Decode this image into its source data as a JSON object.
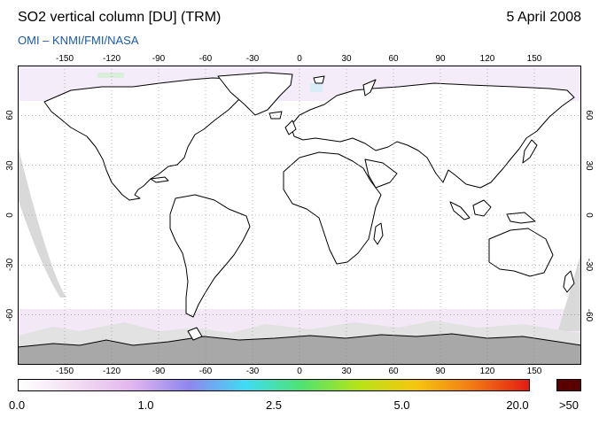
{
  "header": {
    "title": "SO2 vertical column [DU] (TRM)",
    "date": "5 April 2008",
    "credit": "OMI  –  KNMI/FMI/NASA"
  },
  "map": {
    "lon_ticks": [
      "-150",
      "-120",
      "-90",
      "-60",
      "-30",
      "0",
      "30",
      "60",
      "90",
      "120",
      "150"
    ],
    "lon_values": [
      -150,
      -120,
      -90,
      -60,
      -30,
      0,
      30,
      60,
      90,
      120,
      150
    ],
    "lat_ticks": [
      "60",
      "30",
      "0",
      "-30",
      "-60"
    ],
    "lat_values": [
      60,
      30,
      0,
      -30,
      -60
    ],
    "lon_range": [
      -180,
      180
    ],
    "lat_range": [
      -90,
      90
    ],
    "projection": "equirectangular",
    "grid": "dotted",
    "missing_data_color": "#d9d9d9",
    "land_outline_color": "#000000"
  },
  "colorbar": {
    "labels": [
      "0.0",
      "1.0",
      "2.5",
      "5.0",
      "20.0",
      ">50"
    ],
    "label_positions": [
      0,
      0.25,
      0.5,
      0.75,
      1.0
    ],
    "stops": [
      "#ffffff",
      "#f2def2",
      "#e2b6ee",
      "#8f86ee",
      "#3fdcf5",
      "#4fe36f",
      "#b7e317",
      "#f6c60f",
      "#f27a14",
      "#e31b13"
    ],
    "overflow_color": "#5a0000"
  }
}
